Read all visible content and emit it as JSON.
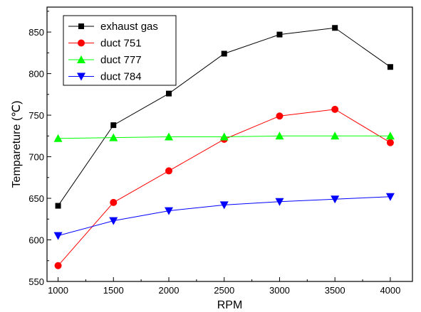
{
  "chart_data": {
    "type": "line",
    "xlabel": "RPM",
    "ylabel": "Tempareture (℃)",
    "x": [
      1000,
      1500,
      2000,
      2500,
      3000,
      3500,
      4000
    ],
    "xlim": [
      900,
      4200
    ],
    "ylim": [
      550,
      880
    ],
    "xticks": [
      "1000",
      "1500",
      "2000",
      "2500",
      "3000",
      "3500",
      "4000"
    ],
    "yticks": [
      "550",
      "600",
      "650",
      "700",
      "750",
      "800",
      "850"
    ],
    "grid": false,
    "legend_position": "top-left",
    "series": [
      {
        "name": "exhaust gas",
        "color": "#000000",
        "marker": "square",
        "values": [
          641,
          738,
          776,
          824,
          847,
          855,
          808
        ]
      },
      {
        "name": "duct 751",
        "color": "#ff0000",
        "marker": "circle",
        "values": [
          569,
          645,
          683,
          721,
          749,
          757,
          717
        ]
      },
      {
        "name": "duct 777",
        "color": "#00ff00",
        "marker": "triangle-up",
        "values": [
          722,
          723,
          724,
          724,
          725,
          725,
          725
        ]
      },
      {
        "name": "duct 784",
        "color": "#0000ff",
        "marker": "triangle-down",
        "values": [
          605,
          623,
          635,
          642,
          646,
          649,
          652
        ]
      }
    ]
  }
}
